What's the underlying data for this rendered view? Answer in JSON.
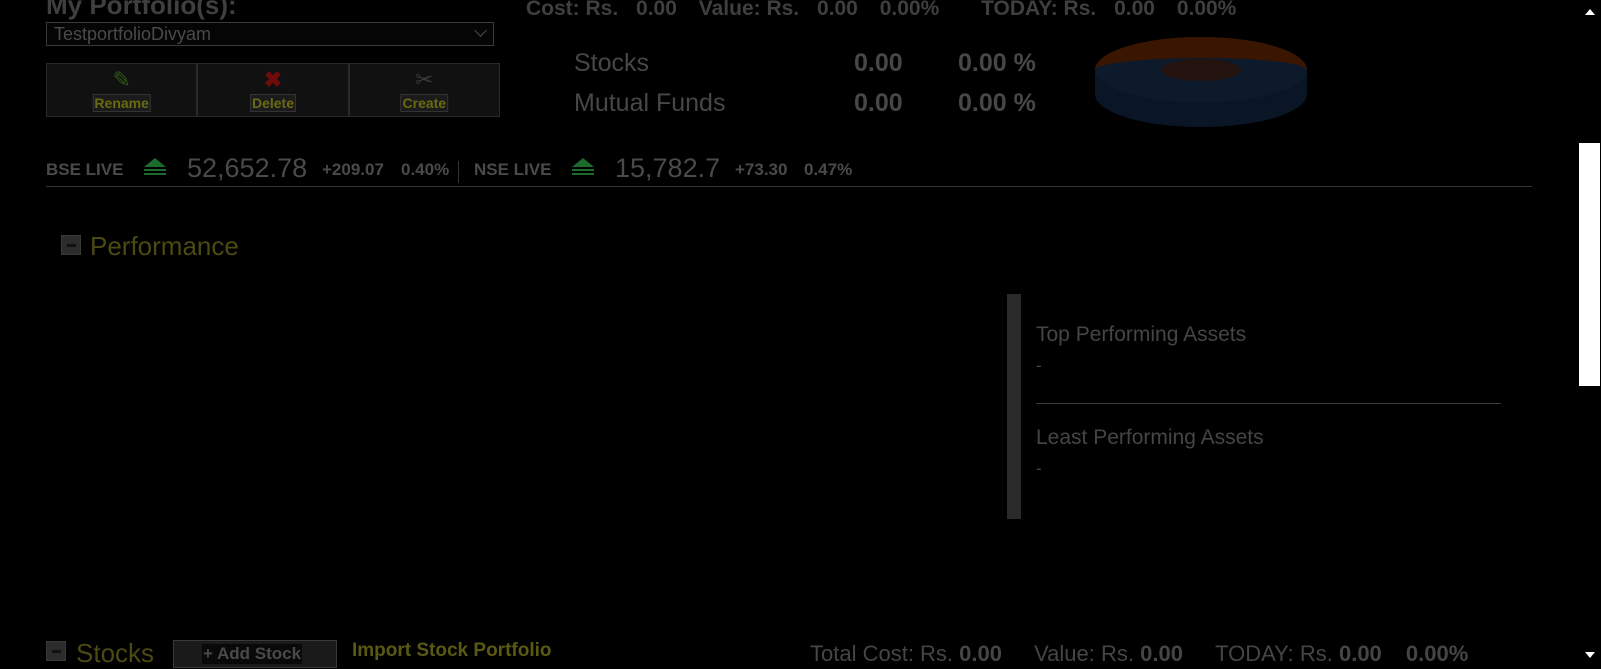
{
  "portfolio": {
    "title": "My Portfolio(s):",
    "selected": "TestportfolioDivyam",
    "buttons": {
      "rename": "Rename",
      "delete": "Delete",
      "create": "Create"
    }
  },
  "summary": {
    "cost_label": "Cost: Rs.",
    "cost": "0.00",
    "value_label": "Value: Rs.",
    "value": "0.00",
    "value_pct": "0.00%",
    "today_label": "TODAY: Rs.",
    "today": "0.00",
    "today_pct": "0.00%"
  },
  "allocation": [
    {
      "name": "Stocks",
      "value": "0.00",
      "pct": "0.00 %"
    },
    {
      "name": "Mutual Funds",
      "value": "0.00",
      "pct": "0.00 %"
    }
  ],
  "pie_colors": {
    "stocks": "#3a1500",
    "mutual_funds": "#0c1a2c"
  },
  "market": {
    "bse": {
      "label": "BSE LIVE",
      "value": "52,652.78",
      "change": "+209.07",
      "pct": "0.40%"
    },
    "nse": {
      "label": "NSE LIVE",
      "value": "15,782.7",
      "change": "+73.30",
      "pct": "0.47%"
    }
  },
  "performance": {
    "title": "Performance",
    "top_label": "Top Performing Assets",
    "top_value": "-",
    "least_label": "Least Performing Assets",
    "least_value": "-"
  },
  "stocks": {
    "title": "Stocks",
    "add_label": "+ Add Stock",
    "import_label": "Import Stock Portfolio",
    "total_cost_label": "Total Cost: Rs.",
    "total_cost": "0.00",
    "value_label": "Value: Rs.",
    "value": "0.00",
    "today_label": "TODAY: Rs.",
    "today": "0.00",
    "today_pct": "0.00%"
  }
}
